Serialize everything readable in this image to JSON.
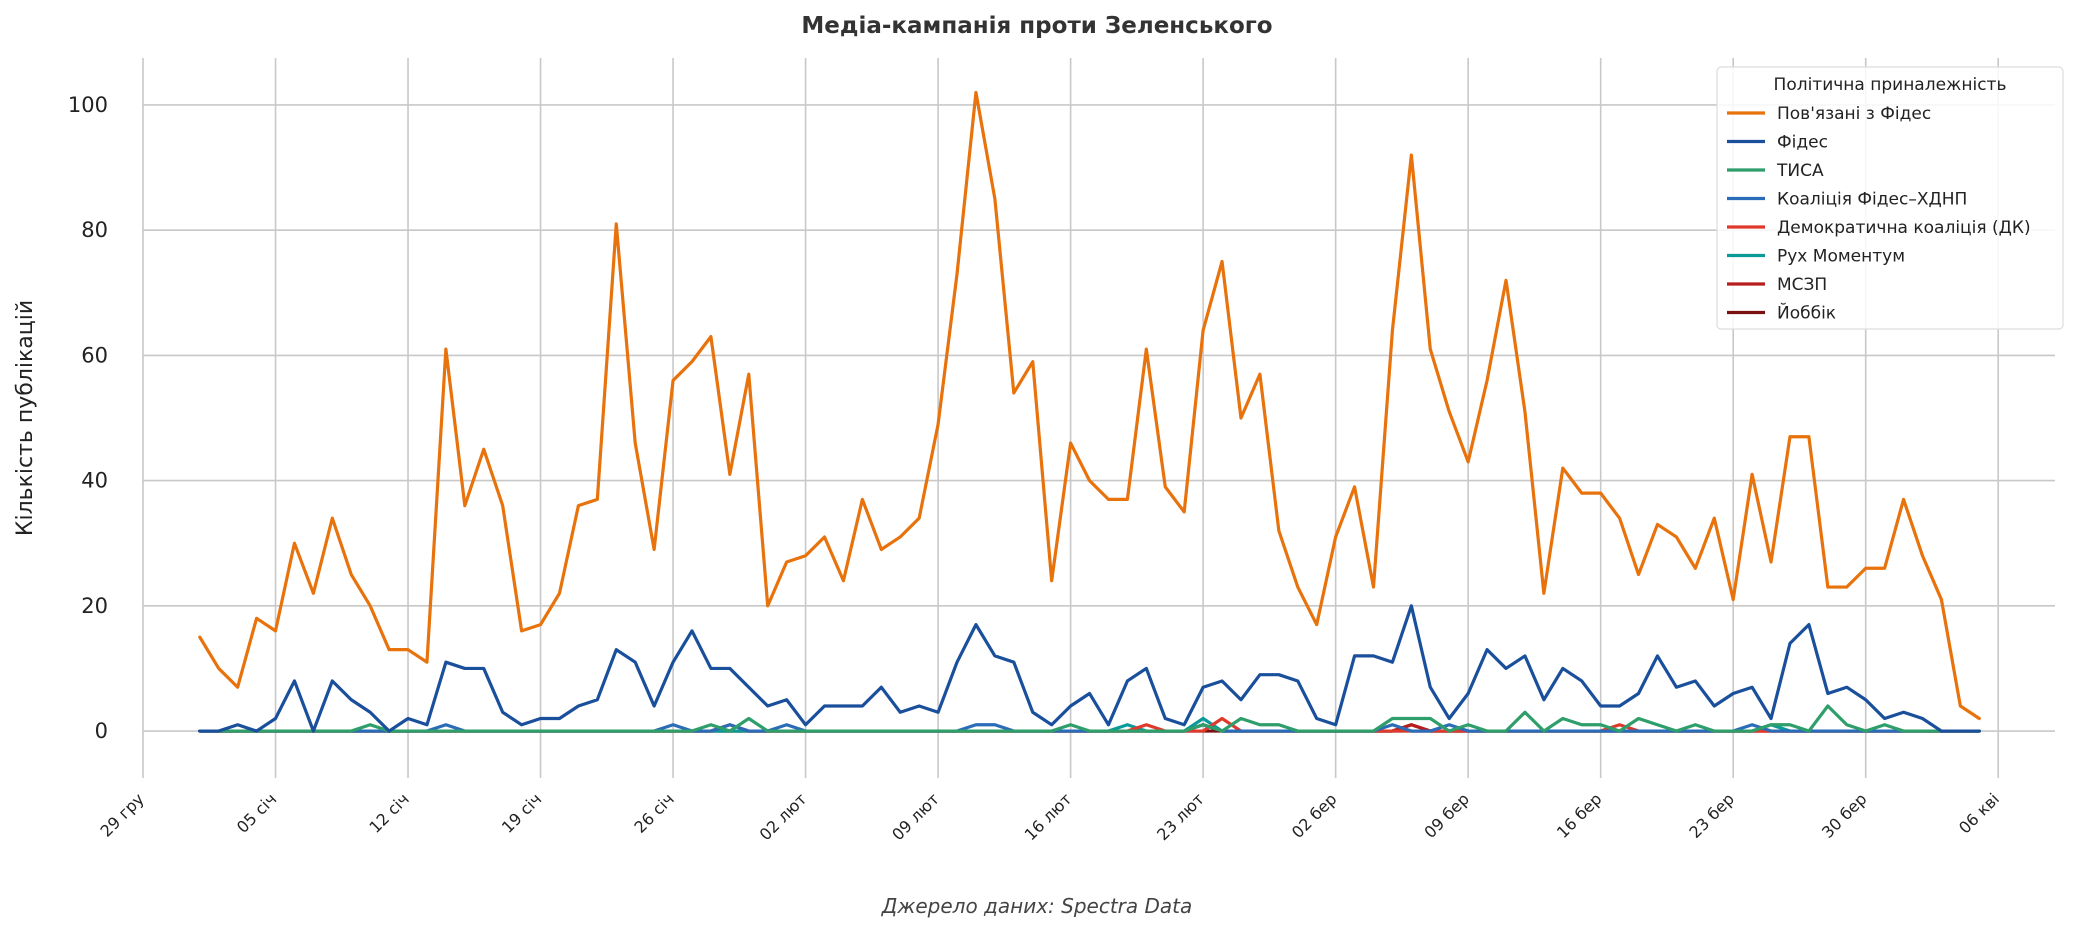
{
  "chart_data": {
    "type": "line",
    "title": "Медіа-кампанія проти Зеленського",
    "ylabel": "Кількість публікацій",
    "source_text": "Джерело даних: Spectra Data",
    "ylim": [
      -7.5,
      107.5
    ],
    "yticks": [
      0,
      20,
      40,
      60,
      80,
      100
    ],
    "x_range": [
      "2024-12-29",
      "2025-04-09"
    ],
    "x_start": "2025-01-01",
    "xticks": [
      {
        "date": "2024-12-29",
        "label": "29 гру"
      },
      {
        "date": "2025-01-05",
        "label": "05 січ"
      },
      {
        "date": "2025-01-12",
        "label": "12 січ"
      },
      {
        "date": "2025-01-19",
        "label": "19 січ"
      },
      {
        "date": "2025-01-26",
        "label": "26 січ"
      },
      {
        "date": "2025-02-02",
        "label": "02 лют"
      },
      {
        "date": "2025-02-09",
        "label": "09 лют"
      },
      {
        "date": "2025-02-16",
        "label": "16 лют"
      },
      {
        "date": "2025-02-23",
        "label": "23 лют"
      },
      {
        "date": "2025-03-02",
        "label": "02 бер"
      },
      {
        "date": "2025-03-09",
        "label": "09 бер"
      },
      {
        "date": "2025-03-16",
        "label": "16 бер"
      },
      {
        "date": "2025-03-23",
        "label": "23 бер"
      },
      {
        "date": "2025-03-30",
        "label": "30 бер"
      },
      {
        "date": "2025-04-06",
        "label": "06 кві"
      }
    ],
    "grid": true,
    "legend": {
      "title": "Політична приналежність",
      "placement": "top-right"
    },
    "series": [
      {
        "name": "Пов'язані з Фідес",
        "color": "#e8720c",
        "values": [
          15,
          10,
          7,
          18,
          16,
          30,
          22,
          34,
          25,
          20,
          13,
          13,
          11,
          61,
          36,
          45,
          36,
          16,
          17,
          22,
          36,
          37,
          81,
          46,
          29,
          56,
          59,
          63,
          41,
          57,
          20,
          27,
          28,
          31,
          24,
          37,
          29,
          31,
          34,
          49,
          73,
          102,
          85,
          54,
          59,
          24,
          46,
          40,
          37,
          37,
          61,
          39,
          35,
          64,
          75,
          50,
          57,
          32,
          23,
          17,
          31,
          39,
          23,
          64,
          92,
          61,
          51,
          43,
          56,
          72,
          51,
          22,
          42,
          38,
          38,
          34,
          25,
          33,
          31,
          26,
          34,
          21,
          41,
          27,
          47,
          47,
          23,
          23,
          26,
          26,
          37,
          28,
          21,
          4,
          2
        ]
      },
      {
        "name": "Фідес",
        "color": "#1a4f9c",
        "values": [
          0,
          0,
          1,
          0,
          2,
          8,
          0,
          8,
          5,
          3,
          0,
          2,
          1,
          11,
          10,
          10,
          3,
          1,
          2,
          2,
          4,
          5,
          13,
          11,
          4,
          11,
          16,
          10,
          10,
          7,
          4,
          5,
          1,
          4,
          4,
          4,
          7,
          3,
          4,
          3,
          11,
          17,
          12,
          11,
          3,
          1,
          4,
          6,
          1,
          8,
          10,
          2,
          1,
          7,
          8,
          5,
          9,
          9,
          8,
          2,
          1,
          12,
          12,
          11,
          20,
          7,
          2,
          6,
          13,
          10,
          12,
          5,
          10,
          8,
          4,
          4,
          6,
          12,
          7,
          8,
          4,
          6,
          7,
          2,
          14,
          17,
          6,
          7,
          5,
          2,
          3,
          2,
          0,
          0,
          0
        ]
      },
      {
        "name": "ТИСА",
        "color": "#2e9e6a",
        "values": [
          0,
          0,
          0,
          0,
          0,
          0,
          0,
          0,
          0,
          1,
          0,
          0,
          0,
          0,
          0,
          0,
          0,
          0,
          0,
          0,
          0,
          0,
          0,
          0,
          0,
          0,
          0,
          1,
          0,
          2,
          0,
          0,
          0,
          0,
          0,
          0,
          0,
          0,
          0,
          0,
          0,
          0,
          0,
          0,
          0,
          0,
          1,
          0,
          0,
          0,
          0,
          0,
          0,
          1,
          0,
          2,
          1,
          1,
          0,
          0,
          0,
          0,
          0,
          2,
          2,
          2,
          0,
          1,
          0,
          0,
          3,
          0,
          2,
          1,
          1,
          0,
          2,
          1,
          0,
          1,
          0,
          0,
          0,
          1,
          1,
          0,
          4,
          1,
          0,
          1,
          0,
          0,
          0,
          0,
          0
        ]
      },
      {
        "name": "Коаліція Фідес–ХДНП",
        "color": "#2b6cb8",
        "values": [
          0,
          0,
          0,
          0,
          0,
          0,
          0,
          0,
          0,
          0,
          0,
          0,
          0,
          1,
          0,
          0,
          0,
          0,
          0,
          0,
          0,
          0,
          0,
          0,
          0,
          1,
          0,
          0,
          1,
          0,
          0,
          1,
          0,
          0,
          0,
          0,
          0,
          0,
          0,
          0,
          0,
          1,
          1,
          0,
          0,
          0,
          0,
          0,
          0,
          0,
          0,
          0,
          0,
          1,
          0,
          0,
          0,
          0,
          0,
          0,
          0,
          0,
          0,
          1,
          0,
          0,
          1,
          0,
          0,
          0,
          0,
          0,
          0,
          0,
          0,
          0,
          0,
          0,
          0,
          0,
          0,
          0,
          1,
          0,
          0,
          0,
          0,
          0,
          0,
          0,
          0,
          0,
          0,
          0,
          0
        ]
      },
      {
        "name": "Демократична коаліція (ДК)",
        "color": "#e0392b",
        "values": [
          0,
          0,
          0,
          0,
          0,
          0,
          0,
          0,
          0,
          0,
          0,
          0,
          0,
          0,
          0,
          0,
          0,
          0,
          0,
          0,
          0,
          0,
          0,
          0,
          0,
          0,
          0,
          0,
          1,
          0,
          0,
          0,
          0,
          0,
          0,
          0,
          0,
          0,
          0,
          0,
          0,
          0,
          0,
          0,
          0,
          0,
          0,
          0,
          0,
          0,
          1,
          0,
          0,
          0,
          2,
          0,
          0,
          0,
          0,
          0,
          0,
          0,
          0,
          0,
          0,
          0,
          0,
          0,
          0,
          0,
          0,
          0,
          0,
          0,
          0,
          1,
          0,
          0,
          0,
          0,
          0,
          0,
          0,
          0,
          0,
          0,
          0,
          0,
          0,
          0,
          0,
          0,
          0,
          0,
          0
        ]
      },
      {
        "name": "Рух Моментум",
        "color": "#0a9a9a",
        "values": [
          0,
          0,
          0,
          0,
          0,
          0,
          0,
          0,
          0,
          0,
          0,
          0,
          0,
          0,
          0,
          0,
          0,
          0,
          0,
          0,
          0,
          0,
          0,
          0,
          0,
          0,
          0,
          0,
          0,
          0,
          0,
          0,
          0,
          0,
          0,
          0,
          0,
          0,
          0,
          0,
          0,
          0,
          0,
          0,
          0,
          0,
          0,
          0,
          0,
          1,
          0,
          0,
          0,
          2,
          0,
          0,
          0,
          0,
          0,
          0,
          0,
          0,
          0,
          0,
          0,
          0,
          0,
          0,
          0,
          0,
          0,
          0,
          0,
          0,
          0,
          0,
          0,
          0,
          0,
          0,
          0,
          0,
          0,
          1,
          0,
          0,
          0,
          0,
          0,
          0,
          0,
          0,
          0,
          0,
          0
        ]
      },
      {
        "name": "МСЗП",
        "color": "#b81d1d",
        "values": [
          0,
          0,
          0,
          0,
          0,
          0,
          0,
          0,
          0,
          0,
          0,
          0,
          0,
          0,
          0,
          0,
          0,
          0,
          0,
          0,
          0,
          0,
          0,
          0,
          0,
          0,
          0,
          0,
          0,
          0,
          0,
          0,
          0,
          0,
          0,
          0,
          0,
          0,
          0,
          0,
          0,
          0,
          0,
          0,
          0,
          0,
          0,
          0,
          0,
          0,
          0,
          0,
          0,
          1,
          0,
          0,
          0,
          0,
          0,
          0,
          0,
          0,
          0,
          0,
          1,
          0,
          0,
          0,
          0,
          0,
          0,
          0,
          0,
          0,
          0,
          0,
          0,
          0,
          0,
          0,
          0,
          0,
          0,
          0,
          0,
          0,
          0,
          0,
          0,
          0,
          0,
          0,
          0,
          0,
          0
        ]
      },
      {
        "name": "Йоббік",
        "color": "#7a1010",
        "values": [
          0,
          0,
          0,
          0,
          0,
          0,
          0,
          0,
          0,
          0,
          0,
          0,
          0,
          0,
          0,
          0,
          0,
          0,
          0,
          0,
          0,
          0,
          0,
          0,
          0,
          0,
          0,
          0,
          0,
          0,
          0,
          0,
          0,
          0,
          0,
          0,
          0,
          0,
          0,
          0,
          0,
          0,
          0,
          0,
          0,
          0,
          0,
          0,
          0,
          0,
          0,
          0,
          0,
          0,
          0,
          0,
          0,
          0,
          0,
          0,
          0,
          0,
          0,
          0,
          1,
          0,
          0,
          0,
          0,
          0,
          0,
          0,
          0,
          0,
          0,
          0,
          0,
          0,
          0,
          0,
          0,
          0,
          0,
          0,
          0,
          0,
          0,
          0,
          0,
          0,
          0,
          0,
          0,
          0,
          0
        ]
      }
    ]
  }
}
